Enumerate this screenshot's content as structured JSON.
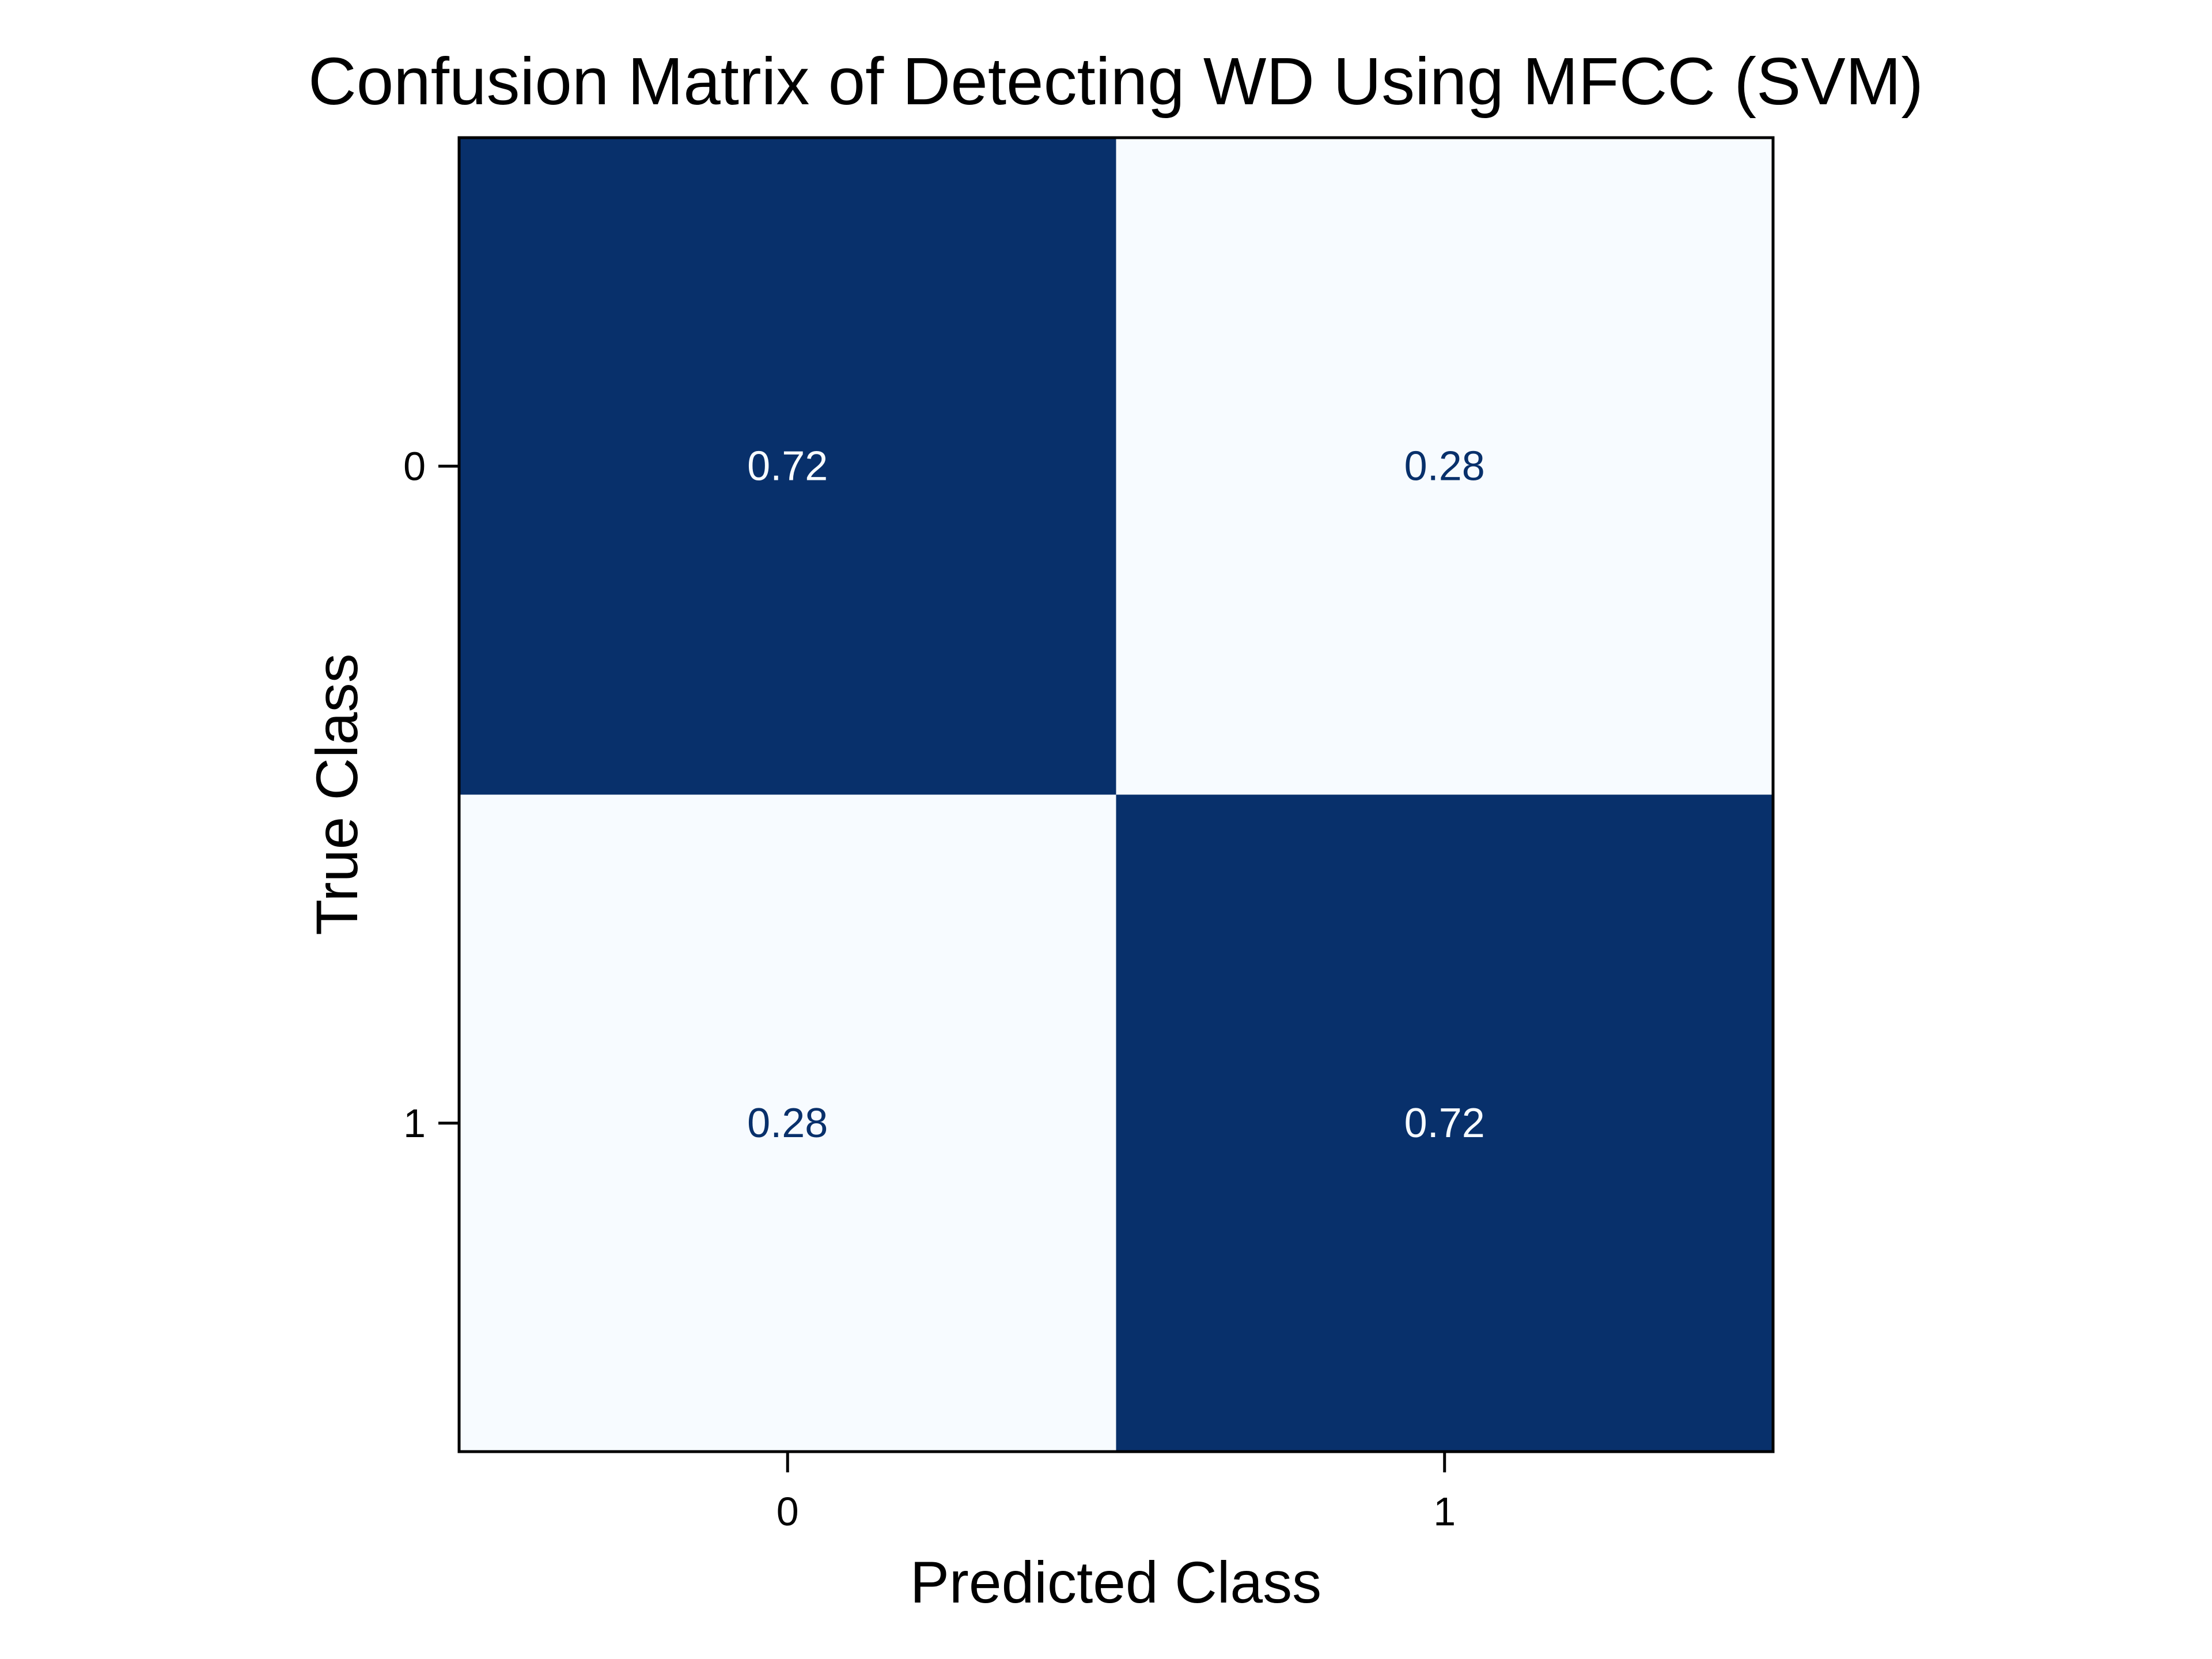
{
  "chart_data": {
    "type": "heatmap",
    "title": "Confusion Matrix of Detecting WD Using MFCC (SVM)",
    "xlabel": "Predicted Class",
    "ylabel": "True Class",
    "x_categories": [
      "0",
      "1"
    ],
    "y_categories": [
      "0",
      "1"
    ],
    "values": [
      [
        0.72,
        0.28
      ],
      [
        0.28,
        0.72
      ]
    ],
    "value_labels": [
      [
        "0.72",
        "0.28"
      ],
      [
        "0.28",
        "0.72"
      ]
    ],
    "colormap": "Blues",
    "colorbar": false,
    "grid": false,
    "colors": {
      "high": "#08306b",
      "low": "#f7fbff",
      "text_on_dark": "#f7fbff",
      "text_on_light": "#08306b"
    }
  }
}
